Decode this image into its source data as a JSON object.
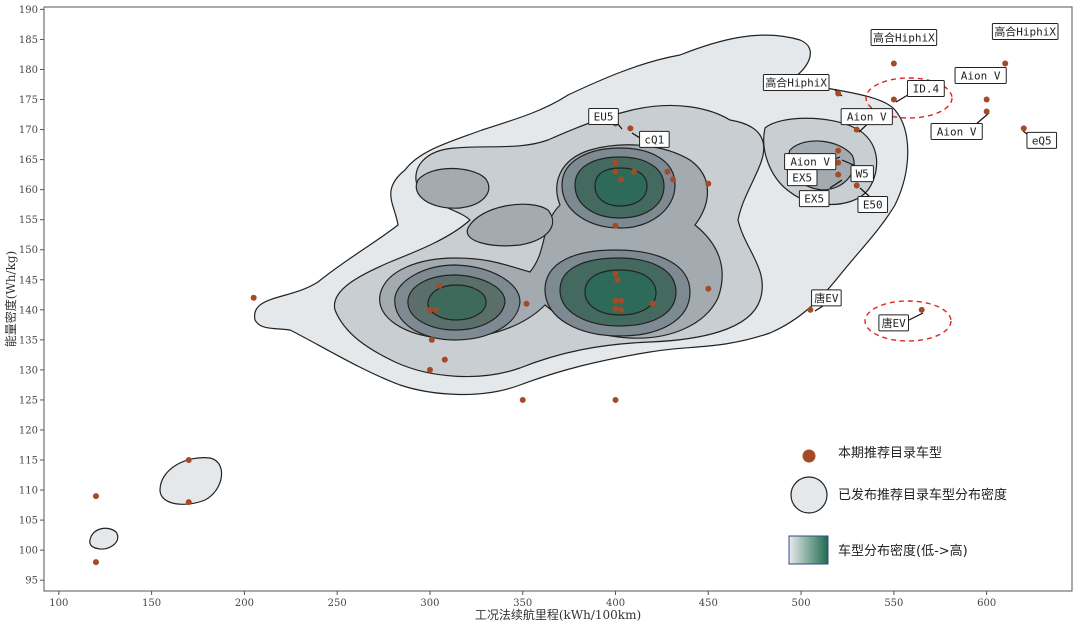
{
  "chart_data": {
    "type": "scatter",
    "xlabel": "工况法续航里程(kWh/100km)",
    "ylabel": "能量密度(Wh/kg)",
    "xlim": [
      92,
      646
    ],
    "ylim": [
      93.2,
      190.4
    ],
    "x_ticks": [
      100,
      150,
      200,
      250,
      300,
      350,
      400,
      450,
      500,
      550,
      600
    ],
    "y_ticks": [
      95,
      100,
      105,
      110,
      115,
      120,
      125,
      130,
      135,
      140,
      145,
      150,
      155,
      160,
      165,
      170,
      175,
      180,
      185,
      190
    ],
    "grid": false,
    "colors": {
      "points": "#a44a27",
      "density_low": "#e8eaec",
      "density_high": "#1f6b4f",
      "highlight": "#e02424"
    },
    "series": [
      {
        "name": "本期推荐目录车型",
        "points": [
          {
            "x": 120,
            "y": 109
          },
          {
            "x": 120,
            "y": 98
          },
          {
            "x": 170,
            "y": 115
          },
          {
            "x": 170,
            "y": 108
          },
          {
            "x": 205,
            "y": 142
          },
          {
            "x": 300,
            "y": 140
          },
          {
            "x": 303,
            "y": 140
          },
          {
            "x": 305,
            "y": 144
          },
          {
            "x": 301,
            "y": 135
          },
          {
            "x": 300,
            "y": 130
          },
          {
            "x": 308,
            "y": 131.7
          },
          {
            "x": 352,
            "y": 141
          },
          {
            "x": 350,
            "y": 125
          },
          {
            "x": 400,
            "y": 125
          },
          {
            "x": 400,
            "y": 171
          },
          {
            "x": 408,
            "y": 170.2
          },
          {
            "x": 400,
            "y": 164.5
          },
          {
            "x": 400,
            "y": 163
          },
          {
            "x": 403,
            "y": 161.7
          },
          {
            "x": 410,
            "y": 163
          },
          {
            "x": 428,
            "y": 163
          },
          {
            "x": 431,
            "y": 161.7
          },
          {
            "x": 450,
            "y": 161
          },
          {
            "x": 400,
            "y": 154
          },
          {
            "x": 400,
            "y": 146
          },
          {
            "x": 401,
            "y": 145
          },
          {
            "x": 400,
            "y": 141.5
          },
          {
            "x": 403,
            "y": 141.5
          },
          {
            "x": 400,
            "y": 140.2
          },
          {
            "x": 403,
            "y": 140
          },
          {
            "x": 420,
            "y": 141
          },
          {
            "x": 450,
            "y": 143.5
          },
          {
            "x": 505,
            "y": 140
          },
          {
            "x": 520,
            "y": 176
          },
          {
            "x": 550,
            "y": 181
          },
          {
            "x": 610,
            "y": 181
          },
          {
            "x": 550,
            "y": 175
          },
          {
            "x": 530,
            "y": 170
          },
          {
            "x": 600,
            "y": 175
          },
          {
            "x": 600,
            "y": 173
          },
          {
            "x": 620,
            "y": 170.2
          },
          {
            "x": 520,
            "y": 166.5
          },
          {
            "x": 520,
            "y": 164.5
          },
          {
            "x": 520,
            "y": 162.5
          },
          {
            "x": 530,
            "y": 160.7
          },
          {
            "x": 565,
            "y": 140
          }
        ]
      },
      {
        "name": "已发布推荐目录车型分布密度",
        "type": "density"
      }
    ],
    "annotations": [
      {
        "text": "EU5",
        "x": 400,
        "y": 171
      },
      {
        "text": "cQ1",
        "x": 408,
        "y": 170.2
      },
      {
        "text": "高合HiphiX",
        "x": 520,
        "y": 176
      },
      {
        "text": "高合HiphiX",
        "x": 550,
        "y": 181
      },
      {
        "text": "高合HiphiX",
        "x": 610,
        "y": 181
      },
      {
        "text": "ID.4",
        "x": 550,
        "y": 175
      },
      {
        "text": "Aion V",
        "x": 530,
        "y": 170
      },
      {
        "text": "Aion V",
        "x": 600,
        "y": 175
      },
      {
        "text": "Aion V",
        "x": 520,
        "y": 166.5
      },
      {
        "text": "Aion V",
        "x": 600,
        "y": 173
      },
      {
        "text": "eQ5",
        "x": 620,
        "y": 170.2
      },
      {
        "text": "EX5",
        "x": 520,
        "y": 164.5
      },
      {
        "text": "W5",
        "x": 520,
        "y": 164.5
      },
      {
        "text": "EX5",
        "x": 520,
        "y": 162.5
      },
      {
        "text": "E50",
        "x": 530,
        "y": 160.7
      },
      {
        "text": "唐EV",
        "x": 505,
        "y": 140
      },
      {
        "text": "唐EV",
        "x": 565,
        "y": 140
      }
    ],
    "legend": {
      "placement": "bottom-right",
      "items": [
        "本期推荐目录车型",
        "已发布推荐目录车型分布密度",
        "车型分布密度(低->高)"
      ]
    }
  }
}
